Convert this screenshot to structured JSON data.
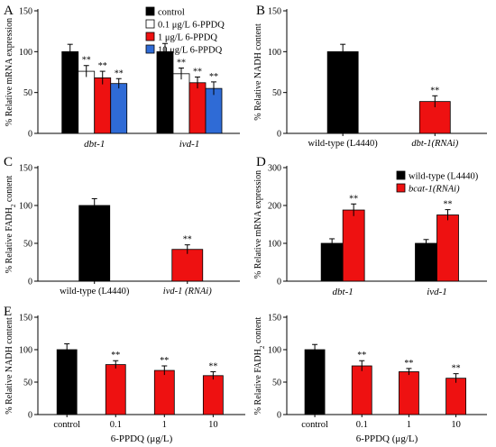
{
  "chart_data": [
    {
      "panel": "A",
      "type": "bar",
      "ylabel": "% Relative mRNA expression",
      "ylim": [
        0,
        150
      ],
      "yticks": [
        0,
        50,
        100,
        150
      ],
      "categories": [
        "dbt-1",
        "ivd-1"
      ],
      "categories_italic": true,
      "legend": "top-right",
      "series": [
        {
          "name": "control",
          "color": "#000000",
          "values": [
            100,
            100
          ],
          "errors": [
            9,
            10
          ],
          "stars": [
            "",
            ""
          ]
        },
        {
          "name": "0.1 μg/L 6-PPDQ",
          "color": "#ffffff",
          "values": [
            76,
            73
          ],
          "errors": [
            7,
            7
          ],
          "stars": [
            "**",
            "**"
          ]
        },
        {
          "name": "1 μg/L 6-PPDQ",
          "color": "#ee1111",
          "values": [
            68,
            62
          ],
          "errors": [
            8,
            7
          ],
          "stars": [
            "**",
            "**"
          ]
        },
        {
          "name": "10 μg/L 6-PPDQ",
          "color": "#2f6bd6",
          "values": [
            61,
            55
          ],
          "errors": [
            6,
            8
          ],
          "stars": [
            "**",
            "**"
          ]
        }
      ]
    },
    {
      "panel": "B",
      "type": "bar",
      "ylabel": "% Relative NADH content",
      "ylim": [
        0,
        150
      ],
      "yticks": [
        0,
        50,
        100,
        150
      ],
      "categories": [
        "wild-type (L4440)",
        "dbt-1(RNAi)"
      ],
      "categories_italic": [
        false,
        true
      ],
      "values": [
        100,
        39
      ],
      "errors": [
        9,
        7
      ],
      "colors": [
        "#000000",
        "#ee1111"
      ],
      "stars": [
        "",
        "**"
      ]
    },
    {
      "panel": "C",
      "type": "bar",
      "ylabel": "% Relative FADH2 content",
      "ylim": [
        0,
        150
      ],
      "yticks": [
        0,
        50,
        100,
        150
      ],
      "categories": [
        "wild-type (L4440)",
        "ivd-1 (RNAi)"
      ],
      "categories_italic": [
        false,
        true
      ],
      "values": [
        100,
        42
      ],
      "errors": [
        9,
        6
      ],
      "colors": [
        "#000000",
        "#ee1111"
      ],
      "stars": [
        "",
        "**"
      ]
    },
    {
      "panel": "D",
      "type": "bar",
      "ylabel": "% Relative mRNA expression",
      "ylim": [
        0,
        300
      ],
      "yticks": [
        0,
        100,
        200,
        300
      ],
      "categories": [
        "dbt-1",
        "ivd-1"
      ],
      "categories_italic": true,
      "legend": "top-right",
      "series": [
        {
          "name": "wild-type (L4440)",
          "color": "#000000",
          "values": [
            100,
            100
          ],
          "errors": [
            12,
            10
          ],
          "stars": [
            "",
            ""
          ]
        },
        {
          "name": "bcat-1(RNAi)",
          "color": "#ee1111",
          "italic": true,
          "values": [
            188,
            175
          ],
          "errors": [
            16,
            14
          ],
          "stars": [
            "**",
            "**"
          ]
        }
      ]
    },
    {
      "panel": "E",
      "type": "bar",
      "ylabel": "% Relative NADH content",
      "ylim": [
        0,
        150
      ],
      "yticks": [
        0,
        50,
        100,
        150
      ],
      "xlabel": "6-PPDQ (μg/L)",
      "categories": [
        "control",
        "0.1",
        "1",
        "10"
      ],
      "values": [
        100,
        77,
        68,
        60
      ],
      "errors": [
        9,
        6,
        7,
        6
      ],
      "colors": [
        "#000000",
        "#ee1111",
        "#ee1111",
        "#ee1111"
      ],
      "stars": [
        "",
        "**",
        "**",
        "**"
      ]
    },
    {
      "panel": "",
      "type": "bar",
      "ylabel": "% Relative FADH2 content",
      "ylim": [
        0,
        150
      ],
      "yticks": [
        0,
        50,
        100,
        150
      ],
      "xlabel": "6-PPDQ (μg/L)",
      "categories": [
        "control",
        "0.1",
        "1",
        "10"
      ],
      "values": [
        100,
        75,
        66,
        56
      ],
      "errors": [
        8,
        8,
        5,
        7
      ],
      "colors": [
        "#000000",
        "#ee1111",
        "#ee1111",
        "#ee1111"
      ],
      "stars": [
        "",
        "**",
        "**",
        "**"
      ]
    }
  ]
}
